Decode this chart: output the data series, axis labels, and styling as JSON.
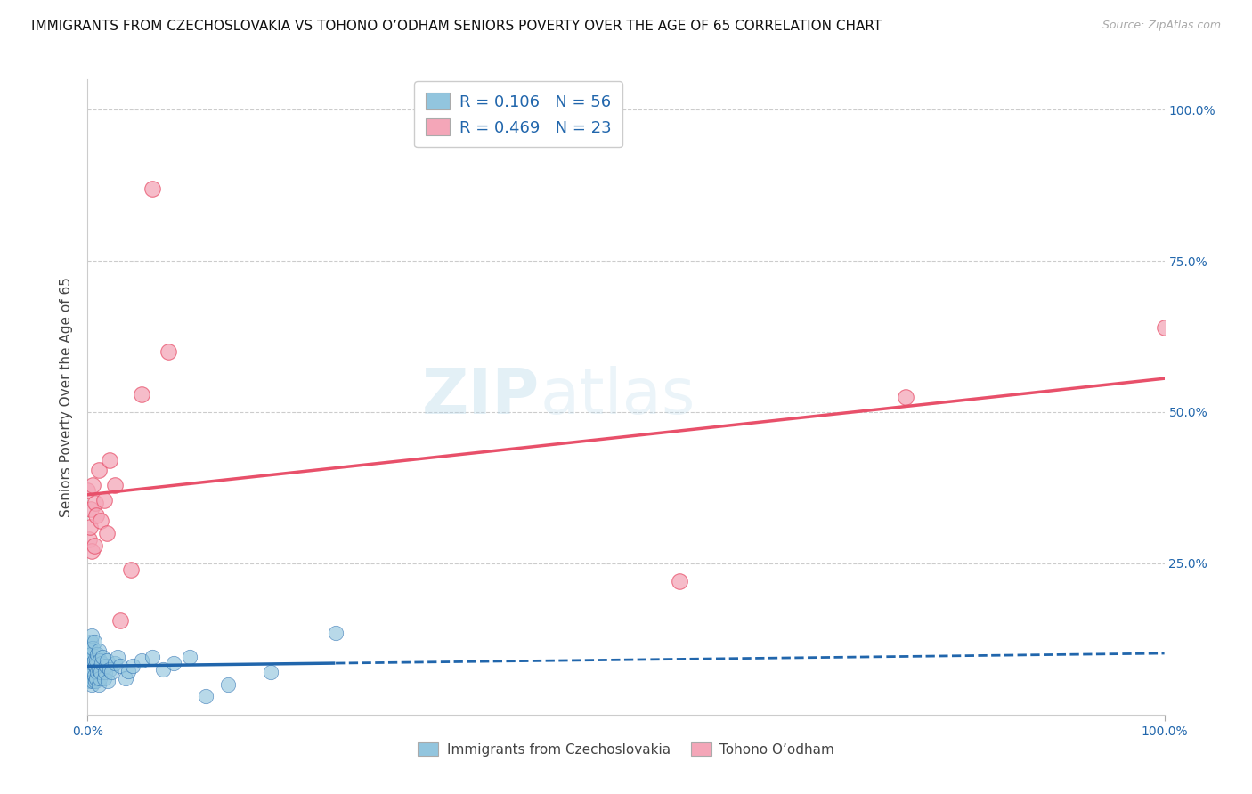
{
  "title": "IMMIGRANTS FROM CZECHOSLOVAKIA VS TOHONO O’ODHAM SENIORS POVERTY OVER THE AGE OF 65 CORRELATION CHART",
  "source": "Source: ZipAtlas.com",
  "ylabel": "Seniors Poverty Over the Age of 65",
  "ytick_labels": [
    "",
    "25.0%",
    "50.0%",
    "75.0%",
    "100.0%"
  ],
  "ytick_values": [
    0.0,
    0.25,
    0.5,
    0.75,
    1.0
  ],
  "xtick_labels": [
    "0.0%",
    "100.0%"
  ],
  "xtick_values": [
    0.0,
    1.0
  ],
  "legend_blue_R": "R = 0.106",
  "legend_blue_N": "N = 56",
  "legend_pink_R": "R = 0.469",
  "legend_pink_N": "N = 23",
  "legend_blue_label": "Immigrants from Czechoslovakia",
  "legend_pink_label": "Tohono O’odham",
  "blue_color": "#92c5de",
  "pink_color": "#f4a6b8",
  "blue_line_color": "#2166ac",
  "pink_line_color": "#e8506a",
  "blue_line_solid_end": 0.23,
  "watermark_text1": "ZIP",
  "watermark_text2": "atlas",
  "blue_scatter_x": [
    0.0,
    0.001,
    0.001,
    0.002,
    0.002,
    0.002,
    0.003,
    0.003,
    0.003,
    0.003,
    0.004,
    0.004,
    0.004,
    0.004,
    0.005,
    0.005,
    0.005,
    0.006,
    0.006,
    0.006,
    0.007,
    0.007,
    0.008,
    0.008,
    0.009,
    0.009,
    0.01,
    0.01,
    0.01,
    0.011,
    0.011,
    0.012,
    0.013,
    0.014,
    0.015,
    0.016,
    0.017,
    0.018,
    0.019,
    0.02,
    0.022,
    0.025,
    0.028,
    0.03,
    0.035,
    0.038,
    0.042,
    0.05,
    0.06,
    0.07,
    0.08,
    0.095,
    0.11,
    0.13,
    0.17,
    0.23
  ],
  "blue_scatter_y": [
    0.06,
    0.08,
    0.095,
    0.055,
    0.08,
    0.11,
    0.065,
    0.09,
    0.12,
    0.1,
    0.05,
    0.075,
    0.1,
    0.13,
    0.055,
    0.085,
    0.11,
    0.065,
    0.09,
    0.12,
    0.055,
    0.08,
    0.06,
    0.09,
    0.07,
    0.1,
    0.05,
    0.075,
    0.105,
    0.06,
    0.09,
    0.07,
    0.085,
    0.095,
    0.06,
    0.07,
    0.08,
    0.09,
    0.055,
    0.075,
    0.07,
    0.085,
    0.095,
    0.08,
    0.06,
    0.072,
    0.08,
    0.09,
    0.095,
    0.075,
    0.085,
    0.095,
    0.03,
    0.05,
    0.07,
    0.135
  ],
  "pink_scatter_x": [
    0.0,
    0.001,
    0.002,
    0.003,
    0.004,
    0.005,
    0.006,
    0.007,
    0.008,
    0.01,
    0.012,
    0.015,
    0.018,
    0.02,
    0.025,
    0.03,
    0.04,
    0.05,
    0.06,
    0.075,
    0.55,
    0.76,
    1.0
  ],
  "pink_scatter_y": [
    0.37,
    0.29,
    0.31,
    0.34,
    0.27,
    0.38,
    0.28,
    0.35,
    0.33,
    0.405,
    0.32,
    0.355,
    0.3,
    0.42,
    0.38,
    0.155,
    0.24,
    0.53,
    0.87,
    0.6,
    0.22,
    0.525,
    0.64
  ],
  "xlim": [
    0.0,
    1.0
  ],
  "ylim": [
    0.0,
    1.05
  ],
  "figsize": [
    14.06,
    8.92
  ],
  "dpi": 100,
  "background_color": "#ffffff",
  "grid_color": "#cccccc"
}
